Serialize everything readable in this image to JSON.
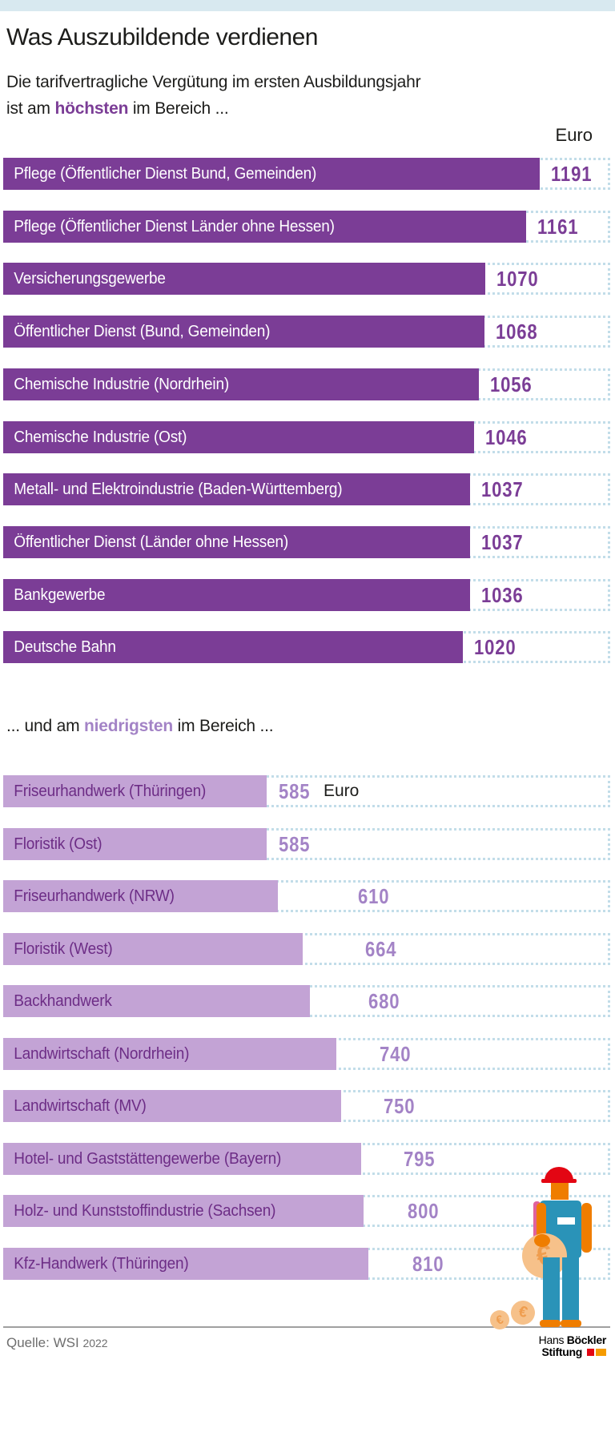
{
  "header": {
    "title": "Was Auszubildende verdienen",
    "subtitle_line1": "Die tarifvertragliche Vergütung im ersten Ausbildungsjahr",
    "subtitle_line2_prefix": "ist am ",
    "subtitle_line2_highlight": "höchsten",
    "subtitle_line2_suffix": " im Bereich ...",
    "unit_label": "Euro"
  },
  "mid_subtitle": {
    "prefix": "... und am ",
    "highlight": "niedrigsten",
    "suffix": " im Bereich ..."
  },
  "chart_data": [
    {
      "type": "bar",
      "title": "Höchste tarifvertragliche Vergütung im ersten Ausbildungsjahr",
      "unit": "Euro",
      "orientation": "horizontal",
      "categories": [
        "Pflege (Öffentlicher Dienst Bund, Gemeinden)",
        "Pflege (Öffentlicher Dienst Länder ohne Hessen)",
        "Versicherungsgewerbe",
        "Öffentlicher Dienst (Bund, Gemeinden)",
        "Chemische Industrie (Nordrhein)",
        "Chemische Industrie (Ost)",
        "Metall- und Elektroindustrie (Baden-Württemberg)",
        "Öffentlicher Dienst (Länder ohne Hessen)",
        "Bankgewerbe",
        "Deutsche Bahn"
      ],
      "values": [
        1191,
        1161,
        1070,
        1068,
        1056,
        1046,
        1037,
        1037,
        1036,
        1020
      ]
    },
    {
      "type": "bar",
      "title": "Niedrigste tarifvertragliche Vergütung im ersten Ausbildungsjahr",
      "unit": "Euro",
      "unit_inline_on_first_row": "Euro",
      "orientation": "horizontal",
      "categories": [
        "Friseurhandwerk (Thüringen)",
        "Floristik (Ost)",
        "Friseurhandwerk (NRW)",
        "Floristik (West)",
        "Backhandwerk",
        "Landwirtschaft (Nordrhein)",
        "Landwirtschaft (MV)",
        "Hotel- und Gaststättengewerbe (Bayern)",
        "Holz- und Kunststoffindustrie (Sachsen)",
        "Kfz-Handwerk (Thüringen)"
      ],
      "values": [
        585,
        585,
        610,
        664,
        680,
        740,
        750,
        795,
        800,
        810
      ]
    }
  ],
  "footer": {
    "source_prefix": "Quelle: WSI",
    "source_year": "2022",
    "logo_word1": "Hans",
    "logo_word2": "Böckler",
    "logo_word3": "Stiftung"
  },
  "illustration": {
    "name": "apprentice-with-euro-coins",
    "coin_symbol": "€"
  },
  "colors": {
    "accent_dark_purple": "#7b3d96",
    "accent_light_purple": "#c3a3d5",
    "value_light_purple": "#a383c6",
    "label_on_light_bar": "#6d2d86",
    "dotted_track_blue": "#c2dde9",
    "top_band_blue": "#d8e9f0",
    "logo_red": "#e30613",
    "logo_orange": "#f59b00",
    "figure_blue": "#2a93b8",
    "figure_orange": "#ef7d00",
    "figure_red": "#e30613",
    "figure_pink": "#e0629c",
    "coin_tan": "#f6c18a"
  }
}
